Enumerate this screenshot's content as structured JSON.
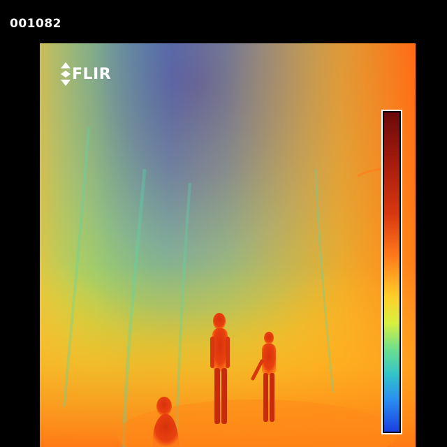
{
  "frame_counter": "001082",
  "logo": {
    "text": "FLIR"
  },
  "scene": {
    "description_colors": {
      "sky_cold": "#1f5fe8",
      "mid_cool": "#2aa8e8",
      "warm_ground": "#ff9a1a",
      "hot_body": "#e8320c"
    }
  },
  "color_scale": {
    "gradient": [
      "#6a0a0a",
      "#d9380f",
      "#ffd02a",
      "#6fe08a",
      "#2a8ef0",
      "#1a3fe0"
    ]
  }
}
